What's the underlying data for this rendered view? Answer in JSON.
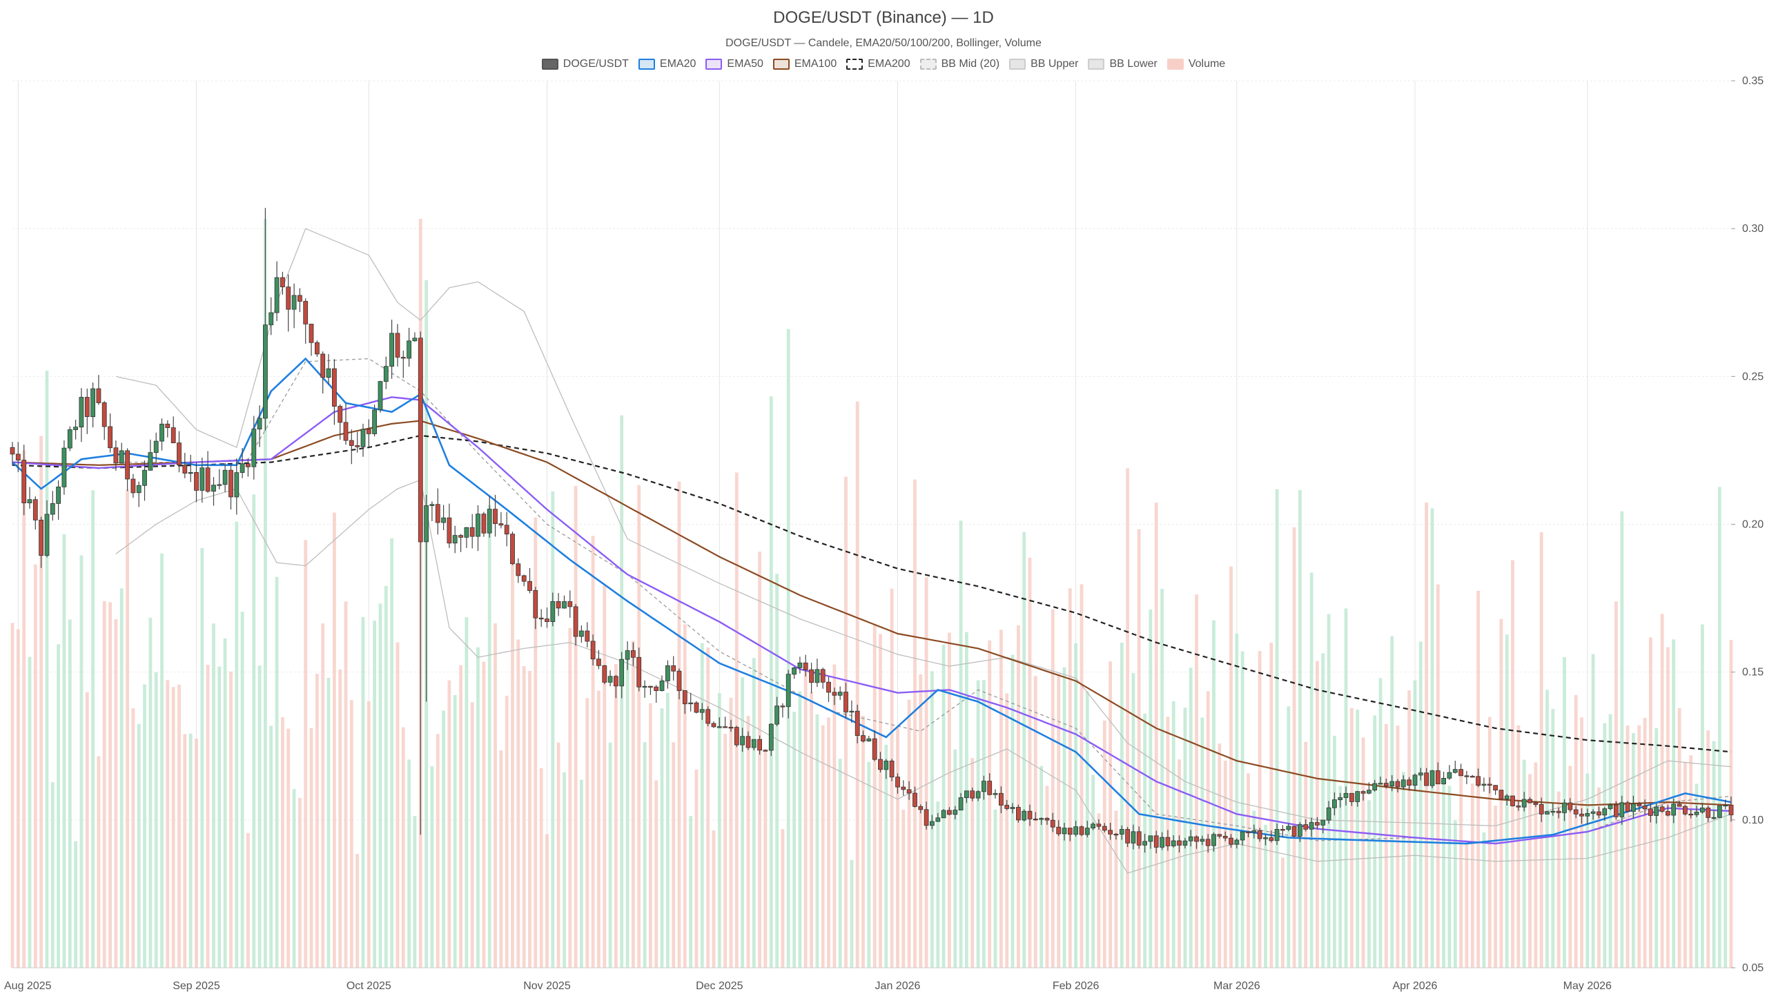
{
  "chart_data": {
    "type": "candlestick",
    "title": "DOGE/USDT (Binance) — 1D",
    "subtitle": "DOGE/USDT — Candele, EMA20/50/100/200, Bollinger, Volume",
    "legend": [
      {
        "name": "DOGE/USDT",
        "fill": "#666666",
        "stroke": "#555555",
        "dash": false
      },
      {
        "name": "EMA20",
        "fill": "#d6e6f5",
        "stroke": "#1e7fe0",
        "dash": false
      },
      {
        "name": "EMA50",
        "fill": "#ece3f8",
        "stroke": "#8b5cf6",
        "dash": false
      },
      {
        "name": "EMA100",
        "fill": "#efe3d9",
        "stroke": "#8b4a22",
        "dash": false
      },
      {
        "name": "EMA200",
        "fill": "#ffffff",
        "stroke": "#222222",
        "dash": true
      },
      {
        "name": "BB Mid (20)",
        "fill": "#eeeeee",
        "stroke": "#bbbbbb",
        "dash": true
      },
      {
        "name": "BB Upper",
        "fill": "#e6e6e6",
        "stroke": "#cccccc",
        "dash": false
      },
      {
        "name": "BB Lower",
        "fill": "#e6e6e6",
        "stroke": "#cccccc",
        "dash": false
      },
      {
        "name": "Volume",
        "fill": "#f7cfc7",
        "stroke": "#f7cfc7",
        "dash": false
      }
    ],
    "y_axis": {
      "min": 0.05,
      "max": 0.35,
      "ticks": [
        "0.35",
        "0.30",
        "0.25",
        "0.20",
        "0.15",
        "0.10",
        "0.05"
      ],
      "side": "right",
      "grid": true
    },
    "x_axis": {
      "ticks": [
        "Aug 2025",
        "Sep 2025",
        "Oct 2025",
        "Nov 2025",
        "Dec 2025",
        "Jan 2026",
        "Feb 2026",
        "Mar 2026",
        "Apr 2026",
        "May 2026"
      ],
      "grid": true
    },
    "colors": {
      "up": "#3f8f5f",
      "down": "#c24a3e",
      "vol_up": "#bfe9d2",
      "vol_down": "#f7cfc7"
    },
    "price_anchors": {
      "x": [
        "2025-07-31",
        "2025-08-03",
        "2025-08-05",
        "2025-08-08",
        "2025-08-11",
        "2025-08-14",
        "2025-08-18",
        "2025-08-22",
        "2025-08-26",
        "2025-08-30",
        "2025-09-04",
        "2025-09-08",
        "2025-09-12",
        "2025-09-13",
        "2025-09-15",
        "2025-09-17",
        "2025-09-20",
        "2025-09-24",
        "2025-09-27",
        "2025-10-01",
        "2025-10-03",
        "2025-10-05",
        "2025-10-07",
        "2025-10-09",
        "2025-10-10",
        "2025-10-12",
        "2025-10-15",
        "2025-10-19",
        "2025-10-23",
        "2025-10-27",
        "2025-10-31",
        "2025-11-03",
        "2025-11-05",
        "2025-11-09",
        "2025-11-12",
        "2025-11-15",
        "2025-11-18",
        "2025-11-22",
        "2025-11-27",
        "2025-12-01",
        "2025-12-05",
        "2025-12-09",
        "2025-12-14",
        "2025-12-18",
        "2025-12-22",
        "2025-12-26",
        "2025-12-29",
        "2026-01-03",
        "2026-01-07",
        "2026-01-11",
        "2026-01-15",
        "2026-01-19",
        "2026-01-24",
        "2026-01-28",
        "2026-01-31",
        "2026-02-03",
        "2026-02-08",
        "2026-02-12",
        "2026-02-18",
        "2026-02-24",
        "2026-03-02",
        "2026-03-08",
        "2026-03-14",
        "2026-03-20",
        "2026-03-26",
        "2026-04-01",
        "2026-04-08",
        "2026-04-15",
        "2026-04-22",
        "2026-04-28",
        "2026-05-04",
        "2026-05-09",
        "2026-05-14",
        "2026-05-18",
        "2026-05-22",
        "2026-05-25"
      ],
      "close": [
        0.222,
        0.205,
        0.192,
        0.215,
        0.235,
        0.242,
        0.222,
        0.214,
        0.232,
        0.214,
        0.216,
        0.214,
        0.236,
        0.265,
        0.286,
        0.278,
        0.268,
        0.25,
        0.23,
        0.228,
        0.245,
        0.262,
        0.255,
        0.258,
        0.195,
        0.208,
        0.192,
        0.198,
        0.202,
        0.185,
        0.168,
        0.175,
        0.168,
        0.153,
        0.146,
        0.155,
        0.144,
        0.149,
        0.138,
        0.133,
        0.127,
        0.124,
        0.153,
        0.149,
        0.14,
        0.128,
        0.12,
        0.108,
        0.098,
        0.104,
        0.112,
        0.106,
        0.1,
        0.098,
        0.094,
        0.098,
        0.096,
        0.093,
        0.092,
        0.093,
        0.094,
        0.095,
        0.098,
        0.108,
        0.113,
        0.113,
        0.116,
        0.11,
        0.104,
        0.104,
        0.103,
        0.104,
        0.104,
        0.104,
        0.103,
        0.103
      ]
    },
    "ema200": {
      "x": [
        "2025-07-31",
        "2025-08-15",
        "2025-09-01",
        "2025-09-14",
        "2025-10-01",
        "2025-10-10",
        "2025-10-20",
        "2025-11-01",
        "2025-11-15",
        "2025-12-01",
        "2025-12-15",
        "2026-01-01",
        "2026-01-15",
        "2026-02-01",
        "2026-02-15",
        "2026-03-01",
        "2026-03-15",
        "2026-04-01",
        "2026-04-15",
        "2026-05-01",
        "2026-05-15",
        "2026-05-26"
      ],
      "values": [
        0.22,
        0.219,
        0.22,
        0.221,
        0.226,
        0.23,
        0.228,
        0.224,
        0.217,
        0.207,
        0.196,
        0.185,
        0.179,
        0.17,
        0.16,
        0.152,
        0.144,
        0.137,
        0.131,
        0.127,
        0.125,
        0.123
      ]
    },
    "ema100": {
      "x": [
        "2025-07-31",
        "2025-08-15",
        "2025-09-01",
        "2025-09-14",
        "2025-09-25",
        "2025-10-05",
        "2025-10-10",
        "2025-10-20",
        "2025-11-01",
        "2025-11-15",
        "2025-12-01",
        "2025-12-15",
        "2026-01-01",
        "2026-01-15",
        "2026-02-01",
        "2026-02-15",
        "2026-03-01",
        "2026-03-15",
        "2026-04-01",
        "2026-04-15",
        "2026-05-01",
        "2026-05-15",
        "2026-05-26"
      ],
      "values": [
        0.221,
        0.22,
        0.221,
        0.222,
        0.23,
        0.234,
        0.235,
        0.229,
        0.221,
        0.206,
        0.189,
        0.176,
        0.163,
        0.158,
        0.147,
        0.131,
        0.12,
        0.114,
        0.11,
        0.107,
        0.105,
        0.106,
        0.105
      ]
    },
    "ema50": {
      "x": [
        "2025-07-31",
        "2025-08-15",
        "2025-09-01",
        "2025-09-14",
        "2025-09-25",
        "2025-10-05",
        "2025-10-10",
        "2025-10-20",
        "2025-11-01",
        "2025-11-15",
        "2025-12-01",
        "2025-12-15",
        "2026-01-01",
        "2026-01-10",
        "2026-01-20",
        "2026-02-01",
        "2026-02-15",
        "2026-03-01",
        "2026-03-15",
        "2026-04-01",
        "2026-04-15",
        "2026-05-01",
        "2026-05-15",
        "2026-05-26"
      ],
      "values": [
        0.221,
        0.219,
        0.221,
        0.222,
        0.238,
        0.243,
        0.242,
        0.226,
        0.205,
        0.183,
        0.167,
        0.151,
        0.143,
        0.144,
        0.138,
        0.129,
        0.113,
        0.102,
        0.097,
        0.094,
        0.092,
        0.096,
        0.104,
        0.103
      ]
    },
    "ema20": {
      "x": [
        "2025-07-31",
        "2025-08-05",
        "2025-08-12",
        "2025-08-20",
        "2025-09-01",
        "2025-09-08",
        "2025-09-14",
        "2025-09-20",
        "2025-09-27",
        "2025-10-05",
        "2025-10-10",
        "2025-10-15",
        "2025-10-25",
        "2025-11-05",
        "2025-11-15",
        "2025-12-01",
        "2025-12-15",
        "2025-12-30",
        "2026-01-08",
        "2026-01-15",
        "2026-02-01",
        "2026-02-12",
        "2026-02-24",
        "2026-03-10",
        "2026-03-25",
        "2026-04-10",
        "2026-04-25",
        "2026-05-10",
        "2026-05-18",
        "2026-05-26"
      ],
      "values": [
        0.221,
        0.212,
        0.222,
        0.224,
        0.22,
        0.22,
        0.245,
        0.256,
        0.241,
        0.238,
        0.244,
        0.22,
        0.205,
        0.188,
        0.174,
        0.153,
        0.142,
        0.128,
        0.144,
        0.14,
        0.123,
        0.102,
        0.098,
        0.094,
        0.093,
        0.092,
        0.095,
        0.104,
        0.109,
        0.106
      ]
    },
    "bb_mid": {
      "x": [
        "2025-08-18",
        "2025-09-01",
        "2025-09-10",
        "2025-09-20",
        "2025-10-01",
        "2025-10-10",
        "2025-10-20",
        "2025-11-01",
        "2025-11-15",
        "2025-12-01",
        "2025-12-20",
        "2026-01-05",
        "2026-01-15",
        "2026-02-01",
        "2026-02-15",
        "2026-03-01",
        "2026-03-15",
        "2026-04-01",
        "2026-04-15",
        "2026-05-01",
        "2026-05-15",
        "2026-05-26"
      ],
      "values": [
        0.221,
        0.221,
        0.222,
        0.255,
        0.256,
        0.245,
        0.224,
        0.2,
        0.183,
        0.157,
        0.137,
        0.13,
        0.144,
        0.131,
        0.102,
        0.098,
        0.093,
        0.094,
        0.092,
        0.096,
        0.106,
        0.108
      ]
    },
    "bb_upper": {
      "x": [
        "2025-08-18",
        "2025-08-25",
        "2025-09-01",
        "2025-09-08",
        "2025-09-15",
        "2025-09-20",
        "2025-10-01",
        "2025-10-06",
        "2025-10-10",
        "2025-10-15",
        "2025-10-20",
        "2025-10-28",
        "2025-11-05",
        "2025-11-15",
        "2025-12-01",
        "2025-12-15",
        "2026-01-01",
        "2026-01-10",
        "2026-01-20",
        "2026-02-01",
        "2026-02-10",
        "2026-02-20",
        "2026-03-01",
        "2026-03-15",
        "2026-04-01",
        "2026-04-15",
        "2026-05-01",
        "2026-05-15",
        "2026-05-26"
      ],
      "values": [
        0.25,
        0.247,
        0.232,
        0.226,
        0.275,
        0.3,
        0.291,
        0.275,
        0.269,
        0.28,
        0.282,
        0.272,
        0.237,
        0.195,
        0.18,
        0.168,
        0.156,
        0.152,
        0.155,
        0.148,
        0.126,
        0.113,
        0.106,
        0.1,
        0.099,
        0.098,
        0.107,
        0.12,
        0.118
      ]
    },
    "bb_lower": {
      "x": [
        "2025-08-18",
        "2025-08-25",
        "2025-09-01",
        "2025-09-08",
        "2025-09-15",
        "2025-09-20",
        "2025-10-01",
        "2025-10-06",
        "2025-10-10",
        "2025-10-15",
        "2025-10-20",
        "2025-10-28",
        "2025-11-05",
        "2025-11-15",
        "2025-12-01",
        "2025-12-15",
        "2026-01-01",
        "2026-01-10",
        "2026-01-20",
        "2026-02-01",
        "2026-02-10",
        "2026-02-20",
        "2026-03-01",
        "2026-03-15",
        "2026-04-01",
        "2026-04-15",
        "2026-05-01",
        "2026-05-15",
        "2026-05-26"
      ],
      "values": [
        0.19,
        0.2,
        0.208,
        0.212,
        0.187,
        0.186,
        0.205,
        0.212,
        0.215,
        0.165,
        0.155,
        0.158,
        0.16,
        0.153,
        0.138,
        0.123,
        0.107,
        0.116,
        0.124,
        0.11,
        0.082,
        0.088,
        0.092,
        0.086,
        0.088,
        0.086,
        0.087,
        0.094,
        0.102
      ]
    },
    "wick_spikes": [
      {
        "x": "2025-10-10",
        "low": 0.095,
        "high": 0.257
      },
      {
        "x": "2025-09-13",
        "low": 0.245,
        "high": 0.307
      },
      {
        "x": "2025-10-11",
        "low": 0.14,
        "high": 0.21
      }
    ],
    "volume_note": "Volume bars share the bottom band of the price panel; heights relative, peak near 2025-10-10."
  }
}
